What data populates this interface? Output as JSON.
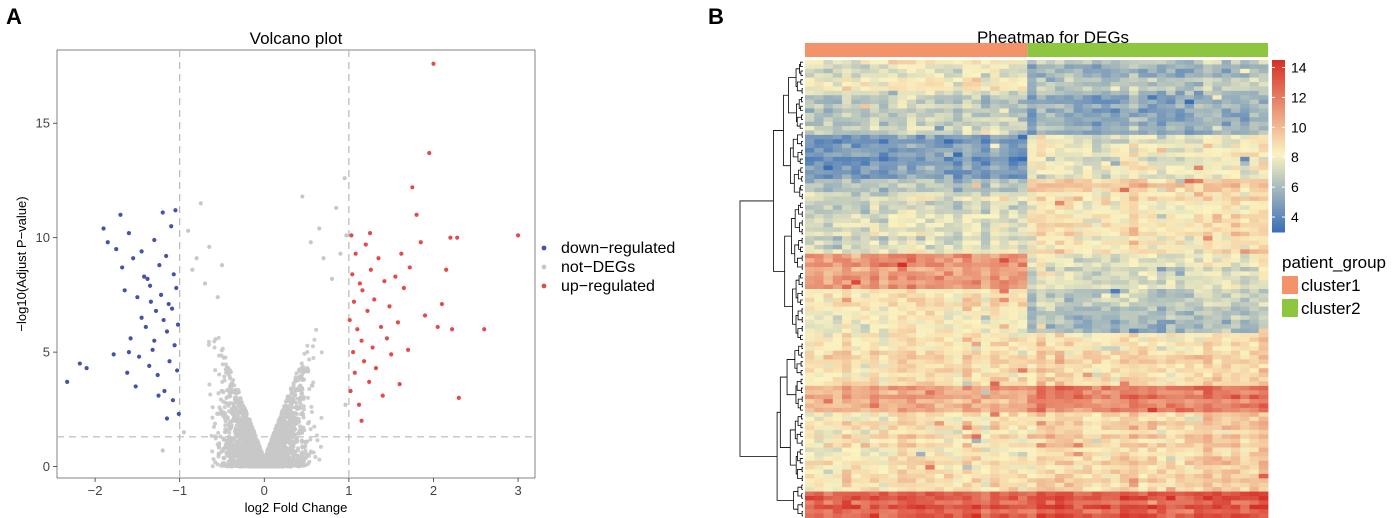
{
  "panels": {
    "a_label": "A",
    "b_label": "B"
  },
  "colors": {
    "down": "#4652a8",
    "not": "#c8c8c8",
    "up": "#e34a4a",
    "cluster1": "#f4936a",
    "cluster2": "#8ec63f",
    "heat_low": "#3a6fb8",
    "heat_mid": "#fbf3c0",
    "heat_high": "#d62f26"
  },
  "chart_data": [
    {
      "type": "scatter",
      "title": "Volcano plot",
      "xlabel": "log2 Fold Change",
      "ylabel": "−log10(Adjust P−value)",
      "xlim": [
        -2.45,
        3.2
      ],
      "ylim": [
        -0.5,
        18.2
      ],
      "xticks": [
        -2,
        -1,
        0,
        1,
        2,
        3
      ],
      "xtick_labels": [
        "−2",
        "−1",
        "0",
        "1",
        "2",
        "3"
      ],
      "yticks": [
        0,
        5,
        10,
        15
      ],
      "ytick_labels": [
        "0",
        "5",
        "10",
        "15"
      ],
      "fc_thresholds": [
        -1,
        1
      ],
      "p_threshold": 1.3,
      "legend": {
        "position": "right",
        "entries": [
          "down−regulated",
          "not−DEGs",
          "up−regulated"
        ]
      },
      "series": [
        {
          "name": "down−regulated",
          "points": [
            [
              -2.33,
              3.7
            ],
            [
              -2.18,
              4.5
            ],
            [
              -2.1,
              4.3
            ],
            [
              -1.9,
              10.4
            ],
            [
              -1.85,
              9.8
            ],
            [
              -1.78,
              4.9
            ],
            [
              -1.75,
              9.5
            ],
            [
              -1.7,
              11.0
            ],
            [
              -1.68,
              8.7
            ],
            [
              -1.65,
              7.7
            ],
            [
              -1.62,
              4.1
            ],
            [
              -1.6,
              10.2
            ],
            [
              -1.58,
              5.6
            ],
            [
              -1.55,
              9.1
            ],
            [
              -1.52,
              3.5
            ],
            [
              -1.5,
              7.4
            ],
            [
              -1.48,
              4.8
            ],
            [
              -1.45,
              9.4
            ],
            [
              -1.42,
              8.3
            ],
            [
              -1.4,
              6.1
            ],
            [
              -1.38,
              8.2
            ],
            [
              -1.36,
              4.4
            ],
            [
              -1.34,
              7.2
            ],
            [
              -1.32,
              5.1
            ],
            [
              -1.3,
              9.9
            ],
            [
              -1.28,
              6.8
            ],
            [
              -1.26,
              4.0
            ],
            [
              -1.24,
              8.8
            ],
            [
              -1.22,
              7.5
            ],
            [
              -1.2,
              11.1
            ],
            [
              -1.19,
              6.4
            ],
            [
              -1.18,
              3.3
            ],
            [
              -1.16,
              9.2
            ],
            [
              -1.15,
              5.9
            ],
            [
              -1.13,
              7.1
            ],
            [
              -1.12,
              4.6
            ],
            [
              -1.1,
              10.5
            ],
            [
              -1.09,
              6.9
            ],
            [
              -1.08,
              2.9
            ],
            [
              -1.07,
              8.4
            ],
            [
              -1.06,
              5.3
            ],
            [
              -1.05,
              11.2
            ],
            [
              -1.04,
              7.8
            ],
            [
              -1.03,
              4.2
            ],
            [
              -1.02,
              6.2
            ],
            [
              -1.01,
              2.3
            ],
            [
              -1.15,
              2.1
            ],
            [
              -1.3,
              5.5
            ],
            [
              -1.45,
              6.5
            ],
            [
              -1.6,
              5.0
            ],
            [
              -1.25,
              3.1
            ],
            [
              -1.35,
              7.9
            ]
          ]
        },
        {
          "name": "not−DEGs",
          "points": [
            [
              -0.9,
              10.3
            ],
            [
              -0.85,
              8.6
            ],
            [
              -0.8,
              9.1
            ],
            [
              -0.75,
              11.5
            ],
            [
              -0.7,
              8.0
            ],
            [
              -0.65,
              9.6
            ],
            [
              -0.55,
              7.4
            ],
            [
              -0.5,
              8.8
            ],
            [
              0.45,
              11.8
            ],
            [
              0.55,
              9.8
            ],
            [
              0.65,
              10.4
            ],
            [
              0.7,
              9.1
            ],
            [
              0.8,
              8.2
            ],
            [
              0.85,
              11.3
            ],
            [
              0.9,
              9.3
            ],
            [
              0.95,
              12.6
            ],
            [
              0.97,
              10.1
            ],
            [
              -1.2,
              0.7
            ],
            [
              -0.95,
              1.5
            ],
            [
              0.96,
              2.7
            ],
            [
              -0.3,
              0.8
            ],
            [
              0.2,
              0.5
            ]
          ]
        },
        {
          "name": "up−regulated",
          "points": [
            [
              1.01,
              6.4
            ],
            [
              1.02,
              3.3
            ],
            [
              1.03,
              10.1
            ],
            [
              1.04,
              8.4
            ],
            [
              1.05,
              5.0
            ],
            [
              1.06,
              7.2
            ],
            [
              1.07,
              4.1
            ],
            [
              1.08,
              9.3
            ],
            [
              1.1,
              6.0
            ],
            [
              1.12,
              2.7
            ],
            [
              1.13,
              8.0
            ],
            [
              1.15,
              5.5
            ],
            [
              1.16,
              7.7
            ],
            [
              1.18,
              4.6
            ],
            [
              1.2,
              9.7
            ],
            [
              1.22,
              6.8
            ],
            [
              1.24,
              3.7
            ],
            [
              1.26,
              8.6
            ],
            [
              1.28,
              5.2
            ],
            [
              1.3,
              7.3
            ],
            [
              1.32,
              4.3
            ],
            [
              1.35,
              9.1
            ],
            [
              1.38,
              6.1
            ],
            [
              1.4,
              3.1
            ],
            [
              1.42,
              8.1
            ],
            [
              1.45,
              5.6
            ],
            [
              1.48,
              7.0
            ],
            [
              1.5,
              4.9
            ],
            [
              1.55,
              8.3
            ],
            [
              1.58,
              6.3
            ],
            [
              1.6,
              3.6
            ],
            [
              1.65,
              7.8
            ],
            [
              1.7,
              5.1
            ],
            [
              1.75,
              12.2
            ],
            [
              1.8,
              11.0
            ],
            [
              1.85,
              9.8
            ],
            [
              1.9,
              6.6
            ],
            [
              1.95,
              13.7
            ],
            [
              2.0,
              17.6
            ],
            [
              2.05,
              6.1
            ],
            [
              2.1,
              7.1
            ],
            [
              2.15,
              8.6
            ],
            [
              2.2,
              10.0
            ],
            [
              2.22,
              6.0
            ],
            [
              2.28,
              10.0
            ],
            [
              2.3,
              3.0
            ],
            [
              2.6,
              6.0
            ],
            [
              3.0,
              10.1
            ],
            [
              1.15,
              2.0
            ],
            [
              1.25,
              10.2
            ],
            [
              1.72,
              8.7
            ],
            [
              1.62,
              9.3
            ]
          ]
        }
      ]
    },
    {
      "type": "heatmap",
      "title": "Pheatmap for DEGs",
      "n_rows": 104,
      "n_cols": 50,
      "color_scale": {
        "min": 3,
        "max": 14.5,
        "ticks": [
          4,
          6,
          8,
          10,
          12,
          14
        ],
        "tick_labels": [
          "4",
          "6",
          "8",
          "10",
          "12",
          "14"
        ]
      },
      "annotation": {
        "title": "patient_group",
        "groups": [
          {
            "name": "cluster1",
            "columns": 24
          },
          {
            "name": "cluster2",
            "columns": 26
          }
        ]
      },
      "row_blocks": [
        {
          "rows": 7,
          "cluster1": 8.0,
          "cluster2": 6.2
        },
        {
          "rows": 10,
          "cluster1": 6.8,
          "cluster2": 5.6
        },
        {
          "rows": 10,
          "cluster1": 4.7,
          "cluster2": 7.8
        },
        {
          "rows": 3,
          "cluster1": 6.3,
          "cluster2": 9.4
        },
        {
          "rows": 14,
          "cluster1": 7.3,
          "cluster2": 8.6
        },
        {
          "rows": 8,
          "cluster1": 11.2,
          "cluster2": 7.6
        },
        {
          "rows": 10,
          "cluster1": 8.6,
          "cluster2": 6.6
        },
        {
          "rows": 12,
          "cluster1": 8.8,
          "cluster2": 8.9
        },
        {
          "rows": 6,
          "cluster1": 10.4,
          "cluster2": 11.9
        },
        {
          "rows": 18,
          "cluster1": 8.6,
          "cluster2": 9.2
        },
        {
          "rows": 6,
          "cluster1": 12.9,
          "cluster2": 13.3
        }
      ]
    }
  ]
}
